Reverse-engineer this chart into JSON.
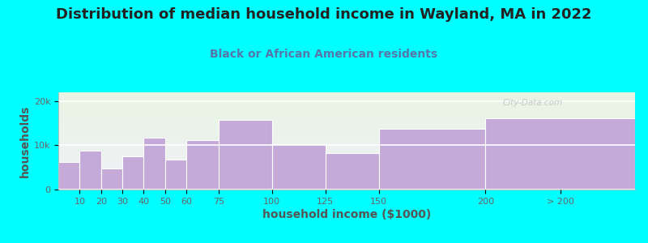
{
  "title": "Distribution of median household income in Wayland, MA in 2022",
  "subtitle": "Black or African American residents",
  "xlabel": "household income ($1000)",
  "ylabel": "households",
  "background_outer": "#00FFFF",
  "background_inner_top": "#e8f5e2",
  "background_inner_bottom": "#f0f0f8",
  "bar_color": "#c4aad8",
  "bar_edge_color": "#ffffff",
  "categories": [
    "10",
    "20",
    "30",
    "40",
    "50",
    "60",
    "75",
    "100",
    "125",
    "150",
    "200",
    "> 200"
  ],
  "values": [
    6200,
    8800,
    4800,
    7600,
    11800,
    6800,
    11200,
    15800,
    10200,
    8200,
    13800,
    16200
  ],
  "ylim": [
    0,
    22000
  ],
  "yticks": [
    0,
    10000,
    20000
  ],
  "ytick_labels": [
    "0",
    "10k",
    "20k"
  ],
  "title_fontsize": 13,
  "subtitle_fontsize": 10,
  "axis_label_fontsize": 10,
  "tick_fontsize": 8,
  "watermark_text": "City-Data.com",
  "watermark_color": "#c0c0c8",
  "left_edges": [
    0,
    10,
    20,
    30,
    40,
    50,
    60,
    75,
    100,
    125,
    150,
    200
  ],
  "right_edges": [
    10,
    20,
    30,
    40,
    50,
    60,
    75,
    100,
    125,
    150,
    200,
    270
  ],
  "xtick_positions": [
    10,
    20,
    30,
    40,
    50,
    60,
    75,
    100,
    125,
    150,
    200,
    235
  ],
  "xtick_labels": [
    "10",
    "20",
    "30",
    "40",
    "50",
    "60",
    "75",
    "100",
    "125",
    "150",
    "200",
    "> 200"
  ],
  "xlim": [
    0,
    270
  ]
}
